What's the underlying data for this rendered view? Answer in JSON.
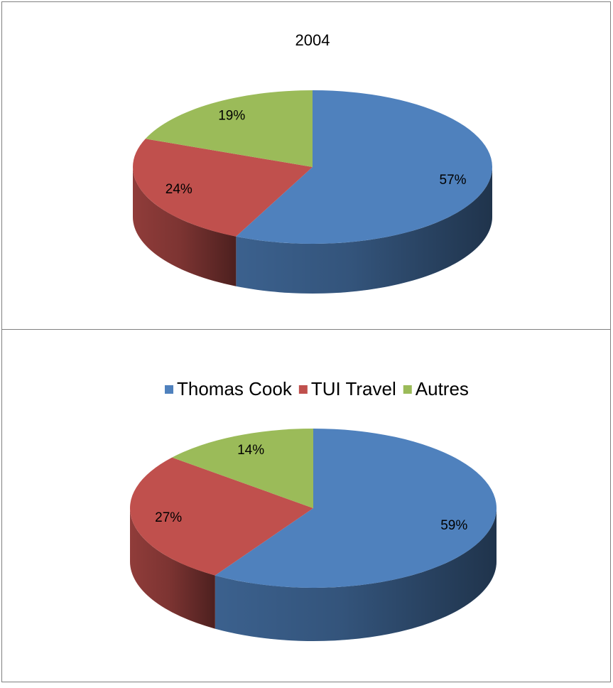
{
  "chart_data": [
    {
      "type": "pie3d",
      "title": "2004",
      "values": [
        57,
        24,
        19
      ],
      "value_labels": [
        "57%",
        "24%",
        "19%"
      ],
      "colors": [
        "#4f81bd",
        "#c0504d",
        "#9bbb59"
      ]
    },
    {
      "type": "pie3d",
      "categories": [
        "Thomas Cook",
        "TUI Travel",
        "Autres"
      ],
      "values": [
        59,
        27,
        14
      ],
      "value_labels": [
        "59%",
        "27%",
        "14%"
      ],
      "colors": [
        "#4f81bd",
        "#c0504d",
        "#9bbb59"
      ],
      "legend": "top"
    }
  ]
}
